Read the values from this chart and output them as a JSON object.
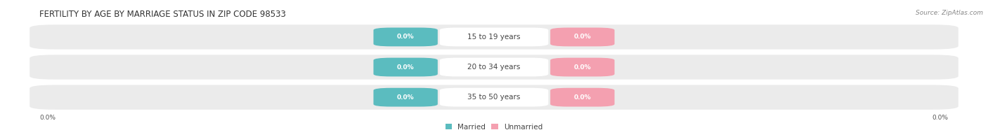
{
  "title": "FERTILITY BY AGE BY MARRIAGE STATUS IN ZIP CODE 98533",
  "source": "Source: ZipAtlas.com",
  "age_groups": [
    "15 to 19 years",
    "20 to 34 years",
    "35 to 50 years"
  ],
  "married_color": "#5bbcbf",
  "unmarried_color": "#f4a0b0",
  "row_bg_color": "#e8e8e8",
  "bg_color": "#ffffff",
  "label_color_white": "#ffffff",
  "center_label_color": "#444444",
  "axis_label": "0.0%",
  "title_fontsize": 8.5,
  "source_fontsize": 6.5,
  "bar_value_fontsize": 6.5,
  "age_label_fontsize": 7.5,
  "legend_fontsize": 7.5
}
